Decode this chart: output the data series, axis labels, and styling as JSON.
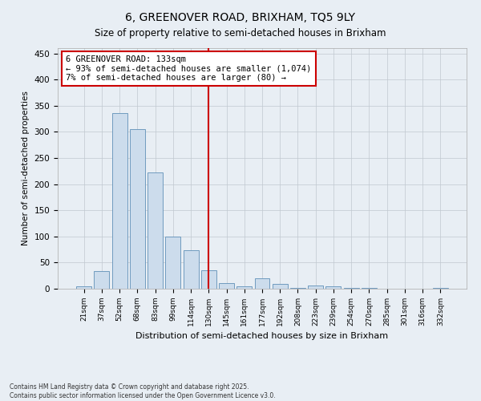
{
  "title": "6, GREENOVER ROAD, BRIXHAM, TQ5 9LY",
  "subtitle": "Size of property relative to semi-detached houses in Brixham",
  "xlabel": "Distribution of semi-detached houses by size in Brixham",
  "ylabel": "Number of semi-detached properties",
  "bins": [
    "21sqm",
    "37sqm",
    "52sqm",
    "68sqm",
    "83sqm",
    "99sqm",
    "114sqm",
    "130sqm",
    "145sqm",
    "161sqm",
    "177sqm",
    "192sqm",
    "208sqm",
    "223sqm",
    "239sqm",
    "254sqm",
    "270sqm",
    "285sqm",
    "301sqm",
    "316sqm",
    "332sqm"
  ],
  "values": [
    5,
    33,
    336,
    305,
    222,
    100,
    74,
    36,
    10,
    5,
    20,
    9,
    2,
    6,
    4,
    2,
    1,
    0,
    0,
    0,
    2
  ],
  "bar_color": "#ccdcec",
  "bar_edge_color": "#6090b8",
  "property_bin_index": 7,
  "vline_color": "#cc0000",
  "annotation_text": "6 GREENOVER ROAD: 133sqm\n← 93% of semi-detached houses are smaller (1,074)\n7% of semi-detached houses are larger (80) →",
  "annotation_box_color": "#ffffff",
  "annotation_border_color": "#cc0000",
  "ylim": [
    0,
    460
  ],
  "yticks": [
    0,
    50,
    100,
    150,
    200,
    250,
    300,
    350,
    400,
    450
  ],
  "footer": "Contains HM Land Registry data © Crown copyright and database right 2025.\nContains public sector information licensed under the Open Government Licence v3.0.",
  "bg_color": "#e8eef4",
  "plot_bg_color": "#e8eef4",
  "grid_color": "#c0c8d0"
}
